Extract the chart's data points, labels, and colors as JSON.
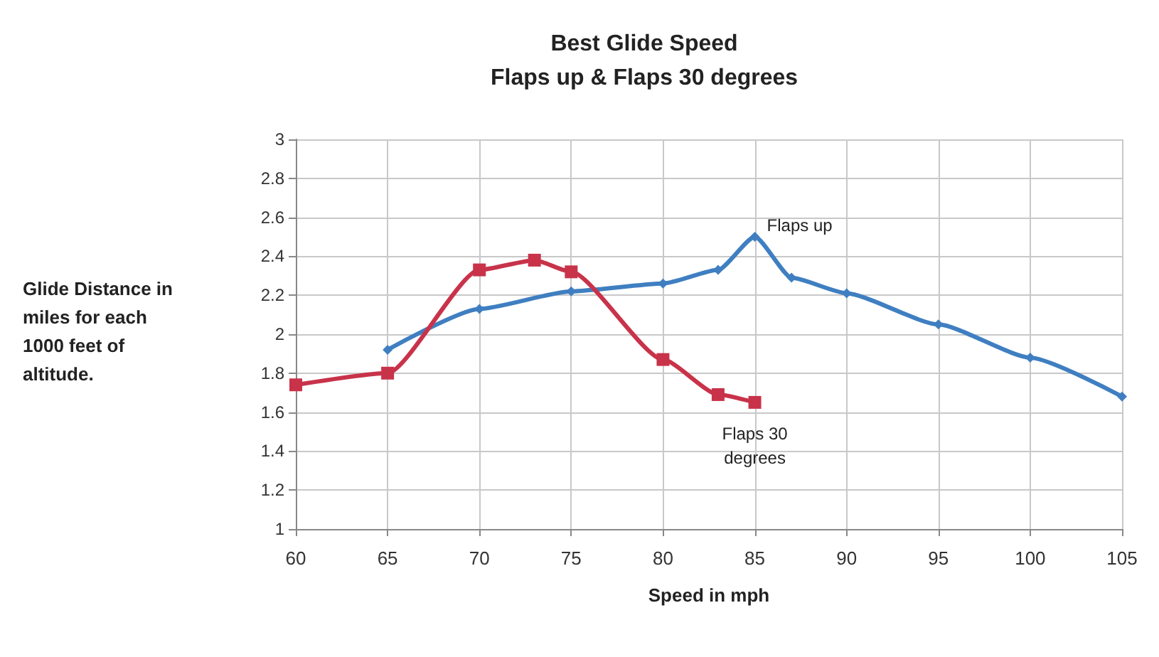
{
  "chart_data": {
    "type": "line",
    "title": "Best Glide Speed\nFlaps up & Flaps 30 degrees",
    "xlabel": "Speed in mph",
    "ylabel": "Glide Distance in miles for each 1000 feet of altitude.",
    "series": [
      {
        "name": "Flaps up",
        "color": "#3f7fc1",
        "marker": "diamond",
        "x": [
          65,
          70,
          75,
          80,
          83,
          85,
          87,
          90,
          95,
          100,
          105
        ],
        "values": [
          1.92,
          2.13,
          2.22,
          2.26,
          2.33,
          2.5,
          2.29,
          2.21,
          2.05,
          1.88,
          1.68
        ]
      },
      {
        "name": "Flaps 30 degrees",
        "color": "#c8334a",
        "marker": "square",
        "x": [
          60,
          65,
          70,
          73,
          75,
          80,
          83,
          85
        ],
        "values": [
          1.74,
          1.8,
          2.33,
          2.38,
          2.32,
          1.87,
          1.69,
          1.65
        ]
      }
    ],
    "xlim": [
      60,
      105
    ],
    "xticks": [
      60,
      65,
      70,
      75,
      80,
      85,
      90,
      95,
      100,
      105
    ],
    "ylim": [
      1,
      3
    ],
    "yticks": [
      1,
      1.2,
      1.4,
      1.6,
      1.8,
      2,
      2.2,
      2.4,
      2.6,
      2.8,
      3
    ],
    "grid": true
  }
}
